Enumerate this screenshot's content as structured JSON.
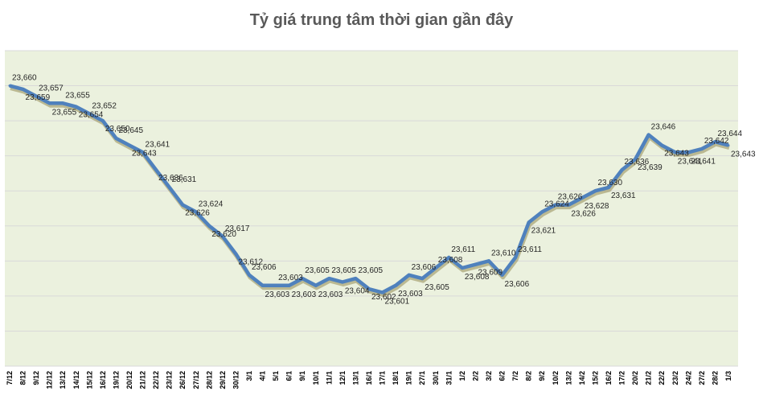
{
  "colors": {
    "plot_bg": "#ebf1de",
    "line": "#4f81bd",
    "shadow": "#948a54",
    "grid": "#d9d9d9"
  },
  "chart_data": {
    "type": "line",
    "title": "Tỷ giá trung tâm thời gian gần đây",
    "xlabel": "",
    "ylabel": "",
    "ylim": [
      23580,
      23670
    ],
    "grid": true,
    "legend": "none",
    "categories": [
      "7/12",
      "8/12",
      "9/12",
      "12/12",
      "13/12",
      "14/12",
      "15/12",
      "16/12",
      "19/12",
      "20/12",
      "21/12",
      "22/12",
      "23/12",
      "26/12",
      "27/12",
      "28/12",
      "29/12",
      "30/12",
      "3/1",
      "4/1",
      "5/1",
      "6/1",
      "9/1",
      "10/1",
      "11/1",
      "12/1",
      "13/1",
      "16/1",
      "17/1",
      "18/1",
      "19/1",
      "27/1",
      "30/1",
      "31/1",
      "1/2",
      "2/2",
      "3/2",
      "6/2",
      "7/2",
      "8/2",
      "9/2",
      "10/2",
      "13/2",
      "14/2",
      "15/2",
      "16/2",
      "17/2",
      "20/2",
      "21/2",
      "22/2",
      "23/2",
      "24/2",
      "27/2",
      "28/2",
      "1/3"
    ],
    "series": [
      {
        "values": [
          23660,
          23659,
          23657,
          23655,
          23655,
          23654,
          23652,
          23650,
          23645,
          23643,
          23641,
          23636,
          23631,
          23626,
          23624,
          23620,
          23617,
          23612,
          23606,
          23603,
          23603,
          23603,
          23605,
          23603,
          23605,
          23604,
          23605,
          23602,
          23601,
          23603,
          23606,
          23605,
          23608,
          23611,
          23608,
          23609,
          23610,
          23606,
          23611,
          23621,
          23624,
          23626,
          23626,
          23628,
          23630,
          23631,
          23636,
          23639,
          23646,
          23643,
          23641,
          23641,
          23642,
          23644,
          23643
        ],
        "labels": [
          "23,660",
          "23,659",
          "23,657",
          "23,655",
          "23,655",
          "23,654",
          "23,652",
          "23,650",
          "23,645",
          "23,643",
          "23,641",
          "23,636",
          "23,631",
          "23,626",
          "23,624",
          "23,620",
          "23,617",
          "23,612",
          "23,606",
          "23,603",
          "23,603",
          "23,603",
          "23,605",
          "23,603",
          "23,605",
          "23,604",
          "23,605",
          "23,602",
          "23,601",
          "23,603",
          "23,606",
          "23,605",
          "23,608",
          "23,611",
          "23,608",
          "23,609",
          "23,610",
          "23,606",
          "23,611",
          "23,621",
          "23,624",
          "23,626",
          "23,626",
          "23,628",
          "23,630",
          "23,631",
          "23,636",
          "23,639",
          "23,646",
          "23,643",
          "23,641",
          "23,641",
          "23,642",
          "23,644",
          "23,643"
        ]
      }
    ]
  }
}
